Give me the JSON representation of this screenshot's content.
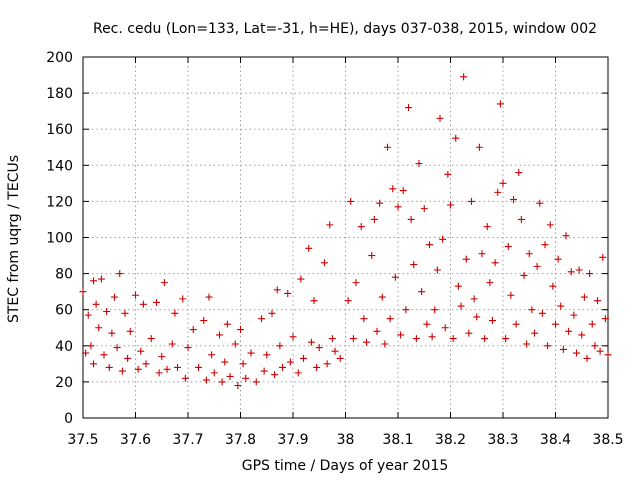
{
  "chart_data": {
    "type": "scatter",
    "title": "Rec. cedu (Lon=133, Lat=-31, h=HE), days 037-038, 2015, window 002",
    "xlabel": "GPS time / Days of year 2015",
    "ylabel": "STEC from uqrg / TECUs",
    "xlim": [
      37.5,
      38.5
    ],
    "ylim": [
      0,
      200
    ],
    "xticks": [
      "37.5",
      "37.6",
      "37.7",
      "37.8",
      "37.9",
      "38",
      "38.1",
      "38.2",
      "38.3",
      "38.4",
      "38.5"
    ],
    "yticks": [
      "0",
      "20",
      "40",
      "60",
      "80",
      "100",
      "120",
      "140",
      "160",
      "180",
      "200"
    ],
    "grid": true,
    "marker": "plus",
    "color": "#cc0000",
    "series": [
      {
        "name": "STEC",
        "points": [
          [
            37.5,
            70
          ],
          [
            37.505,
            36
          ],
          [
            37.51,
            57
          ],
          [
            37.515,
            40
          ],
          [
            37.52,
            76
          ],
          [
            37.52,
            30
          ],
          [
            37.525,
            63
          ],
          [
            37.53,
            50
          ],
          [
            37.535,
            77
          ],
          [
            37.54,
            35
          ],
          [
            37.545,
            59
          ],
          [
            37.55,
            28
          ],
          [
            37.555,
            47
          ],
          [
            37.56,
            67
          ],
          [
            37.565,
            39
          ],
          [
            37.57,
            80
          ],
          [
            37.575,
            26
          ],
          [
            37.58,
            58
          ],
          [
            37.585,
            33
          ],
          [
            37.59,
            48
          ],
          [
            37.6,
            68
          ],
          [
            37.605,
            27
          ],
          [
            37.61,
            37
          ],
          [
            37.615,
            63
          ],
          [
            37.62,
            30
          ],
          [
            37.63,
            44
          ],
          [
            37.64,
            64
          ],
          [
            37.645,
            25
          ],
          [
            37.65,
            34
          ],
          [
            37.655,
            75
          ],
          [
            37.66,
            27
          ],
          [
            37.67,
            41
          ],
          [
            37.675,
            58
          ],
          [
            37.68,
            28
          ],
          [
            37.69,
            66
          ],
          [
            37.695,
            22
          ],
          [
            37.7,
            39
          ],
          [
            37.71,
            49
          ],
          [
            37.72,
            28
          ],
          [
            37.73,
            54
          ],
          [
            37.735,
            21
          ],
          [
            37.74,
            67
          ],
          [
            37.745,
            35
          ],
          [
            37.75,
            25
          ],
          [
            37.76,
            46
          ],
          [
            37.765,
            20
          ],
          [
            37.77,
            31
          ],
          [
            37.775,
            52
          ],
          [
            37.78,
            23
          ],
          [
            37.79,
            41
          ],
          [
            37.795,
            18
          ],
          [
            37.8,
            49
          ],
          [
            37.805,
            30
          ],
          [
            37.81,
            22
          ],
          [
            37.82,
            36
          ],
          [
            37.83,
            20
          ],
          [
            37.84,
            55
          ],
          [
            37.845,
            26
          ],
          [
            37.85,
            35
          ],
          [
            37.86,
            58
          ],
          [
            37.865,
            24
          ],
          [
            37.87,
            71
          ],
          [
            37.875,
            40
          ],
          [
            37.88,
            28
          ],
          [
            37.89,
            69
          ],
          [
            37.895,
            31
          ],
          [
            37.9,
            45
          ],
          [
            37.91,
            25
          ],
          [
            37.915,
            77
          ],
          [
            37.92,
            33
          ],
          [
            37.93,
            94
          ],
          [
            37.935,
            42
          ],
          [
            37.94,
            65
          ],
          [
            37.945,
            28
          ],
          [
            37.95,
            39
          ],
          [
            37.96,
            86
          ],
          [
            37.965,
            30
          ],
          [
            37.97,
            107
          ],
          [
            37.975,
            44
          ],
          [
            37.98,
            37
          ],
          [
            37.99,
            33
          ],
          [
            38.005,
            65
          ],
          [
            38.01,
            120
          ],
          [
            38.015,
            44
          ],
          [
            38.02,
            75
          ],
          [
            38.03,
            106
          ],
          [
            38.035,
            55
          ],
          [
            38.04,
            42
          ],
          [
            38.05,
            90
          ],
          [
            38.055,
            110
          ],
          [
            38.06,
            48
          ],
          [
            38.065,
            119
          ],
          [
            38.07,
            67
          ],
          [
            38.075,
            41
          ],
          [
            38.08,
            150
          ],
          [
            38.085,
            55
          ],
          [
            38.09,
            127
          ],
          [
            38.095,
            78
          ],
          [
            38.1,
            117
          ],
          [
            38.105,
            46
          ],
          [
            38.11,
            126
          ],
          [
            38.115,
            60
          ],
          [
            38.12,
            172
          ],
          [
            38.125,
            110
          ],
          [
            38.13,
            85
          ],
          [
            38.135,
            44
          ],
          [
            38.14,
            141
          ],
          [
            38.145,
            70
          ],
          [
            38.15,
            116
          ],
          [
            38.155,
            52
          ],
          [
            38.16,
            96
          ],
          [
            38.165,
            45
          ],
          [
            38.17,
            60
          ],
          [
            38.175,
            82
          ],
          [
            38.18,
            166
          ],
          [
            38.185,
            99
          ],
          [
            38.19,
            50
          ],
          [
            38.195,
            135
          ],
          [
            38.2,
            118
          ],
          [
            38.205,
            44
          ],
          [
            38.21,
            155
          ],
          [
            38.215,
            73
          ],
          [
            38.22,
            62
          ],
          [
            38.225,
            189
          ],
          [
            38.23,
            88
          ],
          [
            38.235,
            47
          ],
          [
            38.24,
            120
          ],
          [
            38.245,
            66
          ],
          [
            38.25,
            56
          ],
          [
            38.255,
            150
          ],
          [
            38.26,
            91
          ],
          [
            38.265,
            44
          ],
          [
            38.27,
            106
          ],
          [
            38.275,
            75
          ],
          [
            38.28,
            54
          ],
          [
            38.285,
            86
          ],
          [
            38.29,
            125
          ],
          [
            38.295,
            174
          ],
          [
            38.3,
            130
          ],
          [
            38.305,
            44
          ],
          [
            38.31,
            95
          ],
          [
            38.315,
            68
          ],
          [
            38.32,
            121
          ],
          [
            38.325,
            52
          ],
          [
            38.33,
            136
          ],
          [
            38.335,
            110
          ],
          [
            38.34,
            79
          ],
          [
            38.345,
            41
          ],
          [
            38.35,
            91
          ],
          [
            38.355,
            60
          ],
          [
            38.36,
            47
          ],
          [
            38.365,
            84
          ],
          [
            38.37,
            119
          ],
          [
            38.375,
            58
          ],
          [
            38.38,
            96
          ],
          [
            38.385,
            40
          ],
          [
            38.39,
            107
          ],
          [
            38.395,
            73
          ],
          [
            38.4,
            52
          ],
          [
            38.405,
            88
          ],
          [
            38.41,
            62
          ],
          [
            38.415,
            38
          ],
          [
            38.42,
            101
          ],
          [
            38.425,
            48
          ],
          [
            38.43,
            81
          ],
          [
            38.435,
            57
          ],
          [
            38.44,
            36
          ],
          [
            38.445,
            82
          ],
          [
            38.45,
            46
          ],
          [
            38.455,
            67
          ],
          [
            38.46,
            33
          ],
          [
            38.465,
            80
          ],
          [
            38.47,
            52
          ],
          [
            38.475,
            40
          ],
          [
            38.48,
            65
          ],
          [
            38.485,
            37
          ],
          [
            38.49,
            89
          ],
          [
            38.495,
            55
          ],
          [
            38.5,
            35
          ]
        ]
      }
    ]
  }
}
